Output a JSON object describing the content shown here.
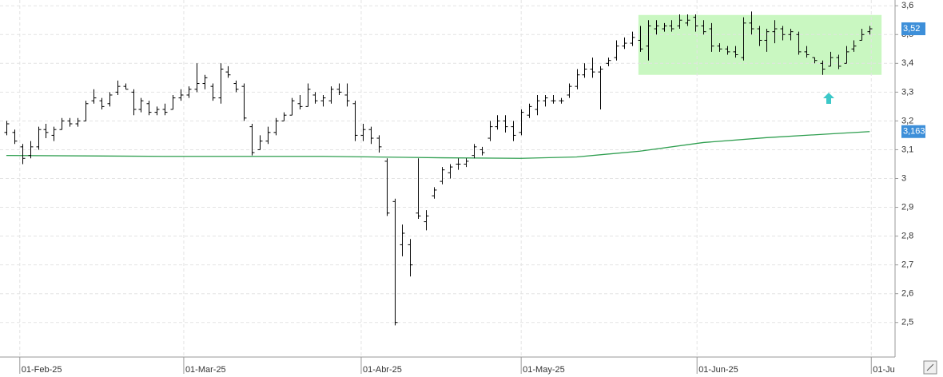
{
  "chart_data": {
    "type": "ohlc",
    "xlim": [
      -0.8,
      112
    ],
    "xticks": [
      {
        "value": 1.7,
        "label": "01-Feb-25"
      },
      {
        "value": 22.4,
        "label": "01-Mar-25"
      },
      {
        "value": 44.8,
        "label": "01-Abr-25"
      },
      {
        "value": 65,
        "label": "01-May-25"
      },
      {
        "value": 87.2,
        "label": "01-Jun-25"
      },
      {
        "value": 109.2,
        "label": "01-Ju"
      }
    ],
    "ylim": [
      2.38,
      3.62
    ],
    "yticks": [
      {
        "value": 2.5,
        "label": "2,5"
      },
      {
        "value": 2.6,
        "label": "2,6"
      },
      {
        "value": 2.7,
        "label": "2,7"
      },
      {
        "value": 2.8,
        "label": "2,8"
      },
      {
        "value": 2.9,
        "label": "2,9"
      },
      3,
      {
        "value": 3.1,
        "label": "3,1"
      },
      {
        "value": 3.2,
        "label": "3,2"
      },
      {
        "value": 3.3,
        "label": "3,3"
      },
      {
        "value": 3.4,
        "label": "3,4"
      },
      {
        "value": 3.5,
        "label": "3,5"
      },
      {
        "value": 3.6,
        "label": "3,6"
      }
    ],
    "grid": true,
    "color": "#000000",
    "open": [
      3.16,
      3.16,
      3.11,
      3.08,
      3.11,
      3.17,
      3.15,
      3.17,
      3.2,
      3.19,
      3.2,
      3.27,
      3.27,
      3.26,
      3.3,
      3.32,
      3.3,
      3.24,
      3.26,
      3.23,
      3.24,
      3.24,
      3.28,
      3.29,
      3.31,
      3.33,
      3.32,
      3.28,
      3.37,
      3.33,
      3.32,
      3.18,
      3.1,
      3.13,
      3.16,
      3.2,
      3.22,
      3.26,
      3.25,
      3.29,
      3.27,
      3.27,
      3.31,
      3.29,
      3.26,
      3.15,
      3.17,
      3.14,
      3.06,
      2.92,
      2.77,
      2.77,
      2.88,
      2.85,
      2.94,
      2.99,
      3.02,
      3.05,
      3.05,
      3.08,
      3.1,
      3.14,
      3.18,
      3.2,
      3.18,
      3.16,
      3.22,
      3.24,
      3.27,
      3.27,
      3.27,
      3.29,
      3.32,
      3.36,
      3.38,
      3.37,
      3.4,
      3.42,
      3.46,
      3.47,
      3.48,
      3.46,
      3.52,
      3.52,
      3.53,
      3.53,
      3.54,
      3.56,
      3.53,
      3.52,
      3.46,
      3.45,
      3.44,
      3.42,
      3.54,
      3.52,
      3.48,
      3.51,
      3.52,
      3.5,
      3.5,
      3.44,
      3.42,
      3.4,
      3.39,
      3.42,
      3.4,
      3.45,
      3.48,
      3.51
    ],
    "high": [
      3.2,
      3.17,
      3.12,
      3.13,
      3.18,
      3.19,
      3.18,
      3.21,
      3.21,
      3.21,
      3.27,
      3.31,
      3.28,
      3.3,
      3.34,
      3.33,
      3.31,
      3.28,
      3.27,
      3.25,
      3.26,
      3.29,
      3.31,
      3.32,
      3.4,
      3.36,
      3.33,
      3.4,
      3.39,
      3.34,
      3.33,
      3.19,
      3.15,
      3.18,
      3.21,
      3.23,
      3.28,
      3.29,
      3.33,
      3.3,
      3.29,
      3.32,
      3.33,
      3.33,
      3.27,
      3.19,
      3.18,
      3.15,
      3.07,
      2.93,
      2.84,
      2.79,
      3.07,
      2.89,
      2.97,
      3.04,
      3.05,
      3.07,
      3.07,
      3.12,
      3.11,
      3.2,
      3.22,
      3.22,
      3.2,
      3.24,
      3.26,
      3.29,
      3.29,
      3.29,
      3.28,
      3.33,
      3.38,
      3.4,
      3.42,
      3.39,
      3.42,
      3.48,
      3.49,
      3.51,
      3.53,
      3.55,
      3.55,
      3.54,
      3.55,
      3.57,
      3.57,
      3.57,
      3.55,
      3.54,
      3.47,
      3.46,
      3.46,
      3.56,
      3.58,
      3.53,
      3.52,
      3.55,
      3.53,
      3.52,
      3.51,
      3.46,
      3.42,
      3.41,
      3.44,
      3.43,
      3.46,
      3.48,
      3.52,
      3.53
    ],
    "low": [
      3.15,
      3.12,
      3.05,
      3.07,
      3.1,
      3.14,
      3.13,
      3.17,
      3.18,
      3.18,
      3.2,
      3.26,
      3.24,
      3.25,
      3.29,
      3.31,
      3.22,
      3.23,
      3.22,
      3.22,
      3.22,
      3.24,
      3.27,
      3.28,
      3.3,
      3.31,
      3.27,
      3.26,
      3.35,
      3.3,
      3.2,
      3.08,
      3.1,
      3.12,
      3.15,
      3.2,
      3.22,
      3.24,
      3.25,
      3.26,
      3.25,
      3.26,
      3.29,
      3.25,
      3.13,
      3.13,
      3.12,
      3.09,
      2.87,
      2.49,
      2.73,
      2.66,
      2.86,
      2.82,
      2.93,
      2.98,
      3.0,
      3.03,
      3.04,
      3.07,
      3.08,
      3.13,
      3.17,
      3.16,
      3.13,
      3.15,
      3.21,
      3.22,
      3.25,
      3.26,
      3.26,
      3.28,
      3.31,
      3.35,
      3.35,
      3.24,
      3.39,
      3.41,
      3.45,
      3.46,
      3.44,
      3.41,
      3.5,
      3.51,
      3.51,
      3.52,
      3.53,
      3.51,
      3.5,
      3.44,
      3.44,
      3.43,
      3.42,
      3.41,
      3.5,
      3.46,
      3.44,
      3.47,
      3.48,
      3.48,
      3.43,
      3.42,
      3.4,
      3.36,
      3.39,
      3.38,
      3.4,
      3.44,
      3.48,
      3.5
    ],
    "close": [
      3.19,
      3.13,
      3.07,
      3.11,
      3.17,
      3.16,
      3.17,
      3.2,
      3.19,
      3.2,
      3.26,
      3.28,
      3.25,
      3.29,
      3.32,
      3.31,
      3.24,
      3.27,
      3.23,
      3.24,
      3.23,
      3.28,
      3.29,
      3.31,
      3.33,
      3.35,
      3.28,
      3.38,
      3.36,
      3.31,
      3.21,
      3.09,
      3.13,
      3.16,
      3.2,
      3.22,
      3.27,
      3.25,
      3.31,
      3.27,
      3.28,
      3.31,
      3.3,
      3.27,
      3.15,
      3.17,
      3.14,
      3.11,
      2.88,
      2.5,
      2.81,
      2.7,
      2.87,
      2.87,
      2.96,
      3.03,
      3.04,
      3.05,
      3.06,
      3.11,
      3.09,
      3.18,
      3.2,
      3.18,
      3.15,
      3.23,
      3.25,
      3.27,
      3.28,
      3.27,
      3.27,
      3.32,
      3.36,
      3.38,
      3.37,
      3.38,
      3.41,
      3.46,
      3.47,
      3.49,
      3.45,
      3.53,
      3.53,
      3.53,
      3.52,
      3.55,
      3.55,
      3.53,
      3.51,
      3.46,
      3.45,
      3.44,
      3.43,
      3.54,
      3.52,
      3.48,
      3.51,
      3.52,
      3.5,
      3.51,
      3.44,
      3.43,
      3.41,
      3.38,
      3.42,
      3.39,
      3.44,
      3.46,
      3.5,
      3.52
    ],
    "average": {
      "color": "#2e9e4f",
      "x": [
        0,
        20,
        40,
        55,
        65,
        72,
        80,
        88,
        96,
        104,
        109
      ],
      "values": [
        3.08,
        3.077,
        3.077,
        3.072,
        3.07,
        3.075,
        3.095,
        3.125,
        3.142,
        3.155,
        3.163
      ]
    },
    "highlight": {
      "color": "#c9f7c1",
      "xlim": [
        79.8,
        110.5
      ],
      "ylim": [
        3.36,
        3.568
      ]
    },
    "last_labels": [
      {
        "value": 3.52,
        "label": "3,52",
        "color": "#3d8fd9"
      },
      {
        "value": 3.163,
        "label": "3,163",
        "color": "#3d8fd9"
      }
    ]
  }
}
